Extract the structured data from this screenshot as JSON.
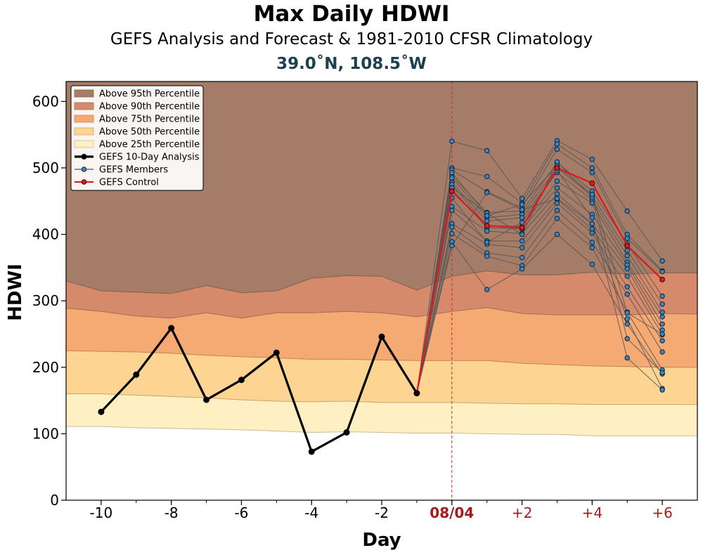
{
  "colors": {
    "p95": "#a57c68",
    "p90": "#d58b6b",
    "p75": "#f5a973",
    "p50": "#fdd491",
    "p25": "#fef0c2",
    "analysis": "#000000",
    "members": "#3a87c7",
    "member_lines": "#555555",
    "control": "#d62020",
    "today_line": "#cc2a2a",
    "forecast_ticks": "#a51b1b",
    "location": "#1d4050"
  },
  "chart_data": {
    "type": "line",
    "title": "Max Daily HDWI",
    "subtitle": "GEFS Analysis and Forecast & 1981-2010 CFSR Climatology",
    "location": "39.0˚N, 108.5˚W",
    "xlabel": "Day",
    "ylabel": "HDWI",
    "xlim": [
      -11,
      7
    ],
    "ylim": [
      0,
      630
    ],
    "x_ticks": [
      {
        "x": -10,
        "label": "-10",
        "style": "past"
      },
      {
        "x": -8,
        "label": "-8",
        "style": "past"
      },
      {
        "x": -6,
        "label": "-6",
        "style": "past"
      },
      {
        "x": -4,
        "label": "-4",
        "style": "past"
      },
      {
        "x": -2,
        "label": "-2",
        "style": "past"
      },
      {
        "x": 0,
        "label": "08/04",
        "style": "today"
      },
      {
        "x": 2,
        "label": "+2",
        "style": "forecast"
      },
      {
        "x": 4,
        "label": "+4",
        "style": "forecast"
      },
      {
        "x": 6,
        "label": "+6",
        "style": "forecast"
      }
    ],
    "y_ticks": [
      0,
      100,
      200,
      300,
      400,
      500,
      600
    ],
    "today_x": 0,
    "legend_position": "upper-left",
    "legend": [
      {
        "label": "Above 95th Percentile",
        "kind": "patch",
        "color_key": "p95"
      },
      {
        "label": "Above 90th Percentile",
        "kind": "patch",
        "color_key": "p90"
      },
      {
        "label": "Above 75th Percentile",
        "kind": "patch",
        "color_key": "p75"
      },
      {
        "label": "Above 50th Percentile",
        "kind": "patch",
        "color_key": "p50"
      },
      {
        "label": "Above 25th Percentile",
        "kind": "patch",
        "color_key": "p25"
      },
      {
        "label": "GEFS 10-Day Analysis",
        "kind": "line-thick",
        "color_key": "analysis"
      },
      {
        "label": "GEFS Members",
        "kind": "line-member",
        "color_key": "members"
      },
      {
        "label": "GEFS Control",
        "kind": "line-control",
        "color_key": "control"
      }
    ],
    "climatology": {
      "x": [
        -11,
        -10,
        -9,
        -8,
        -7,
        -6,
        -5,
        -4,
        -3,
        -2,
        -1,
        0,
        1,
        2,
        3,
        4,
        5,
        6,
        7
      ],
      "bands": [
        {
          "name": "Above 25th Percentile",
          "color_key": "p25",
          "values": [
            111,
            111,
            109,
            108,
            107,
            106,
            104,
            102,
            103,
            102,
            101,
            101,
            100,
            99,
            99,
            97,
            97,
            97,
            97
          ]
        },
        {
          "name": "Above 50th Percentile",
          "color_key": "p50",
          "values": [
            160,
            160,
            158,
            156,
            154,
            151,
            149,
            148,
            149,
            147,
            147,
            147,
            146,
            145,
            145,
            144,
            144,
            144,
            144
          ]
        },
        {
          "name": "Above 75th Percentile",
          "color_key": "p75",
          "values": [
            225,
            224,
            223,
            221,
            218,
            216,
            214,
            212,
            212,
            211,
            210,
            210,
            210,
            206,
            204,
            202,
            201,
            200,
            200
          ]
        },
        {
          "name": "Above 90th Percentile",
          "color_key": "p90",
          "values": [
            289,
            284,
            277,
            274,
            282,
            274,
            282,
            282,
            284,
            282,
            276,
            284,
            290,
            281,
            279,
            279,
            279,
            281,
            280
          ]
        },
        {
          "name": "Above 95th Percentile",
          "color_key": "p95",
          "values": [
            330,
            315,
            313,
            311,
            323,
            312,
            315,
            334,
            338,
            337,
            316,
            337,
            345,
            339,
            339,
            343,
            340,
            342,
            342
          ]
        }
      ]
    },
    "analysis": {
      "name": "GEFS 10-Day Analysis",
      "x": [
        -10,
        -9,
        -8,
        -7,
        -6,
        -5,
        -4,
        -3,
        -2,
        -1
      ],
      "values": [
        133,
        189,
        259,
        151,
        181,
        222,
        73,
        102,
        246,
        161
      ]
    },
    "control": {
      "name": "GEFS Control",
      "x": [
        0,
        1,
        2,
        3,
        4,
        5,
        6
      ],
      "values": [
        465,
        413,
        410,
        500,
        477,
        383,
        332
      ]
    },
    "members": {
      "name": "GEFS Members",
      "x": [
        0,
        1,
        2,
        3,
        4,
        5,
        6
      ],
      "series": [
        [
          540,
          526,
          454,
          541,
          513,
          435,
          360
        ],
        [
          500,
          487,
          447,
          536,
          500,
          400,
          345
        ],
        [
          497,
          464,
          440,
          528,
          493,
          394,
          344
        ],
        [
          488,
          433,
          435,
          508,
          465,
          386,
          307
        ],
        [
          485,
          425,
          430,
          500,
          458,
          376,
          295
        ],
        [
          478,
          420,
          425,
          493,
          452,
          368,
          283
        ],
        [
          475,
          413,
          412,
          480,
          447,
          358,
          276
        ],
        [
          468,
          410,
          408,
          470,
          430,
          354,
          265
        ],
        [
          442,
          405,
          401,
          461,
          416,
          348,
          256
        ],
        [
          436,
          390,
          390,
          453,
          408,
          337,
          249
        ],
        [
          416,
          385,
          380,
          447,
          402,
          321,
          240
        ],
        [
          411,
          372,
          365,
          436,
          388,
          310,
          223
        ],
        [
          401,
          367,
          353,
          424,
          380,
          283,
          196
        ],
        [
          389,
          317,
          348,
          400,
          355,
          265,
          190
        ],
        [
          383,
          463,
          437,
          454,
          416,
          273,
          168
        ],
        [
          470,
          432,
          400,
          509,
          456,
          243,
          192
        ],
        [
          455,
          388,
          418,
          496,
          425,
          214,
          166
        ],
        [
          493,
          428,
          445,
          503,
          460,
          282,
          250
        ]
      ]
    }
  }
}
